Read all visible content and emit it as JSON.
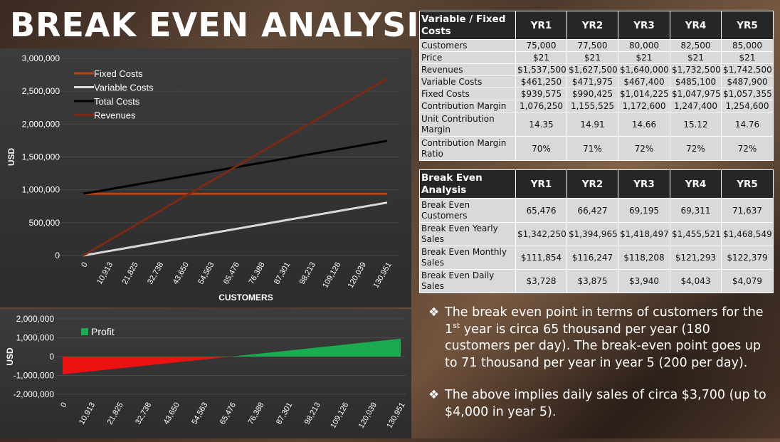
{
  "title": "BREAK EVEN ANALYSIS",
  "chart_data": [
    {
      "type": "line",
      "ylabel": "USD",
      "xlabel": "CUSTOMERS",
      "ylim": [
        0,
        3000000
      ],
      "yticks": [
        "3,000,000",
        "2,500,000",
        "2,000,000",
        "1,500,000",
        "1,000,000",
        "500,000",
        "0"
      ],
      "yticks_values": [
        3000000,
        2500000,
        2000000,
        1500000,
        1000000,
        500000,
        0
      ],
      "x": [
        0,
        10913,
        21825,
        32738,
        43650,
        54563,
        65476,
        76388,
        87301,
        98213,
        109126,
        120039,
        130951
      ],
      "x_labels": [
        "0",
        "10,913",
        "21,825",
        "32,738",
        "43,650",
        "54,563",
        "65,476",
        "76,388",
        "87,301",
        "98,213",
        "109,126",
        "120,039",
        "130,951"
      ],
      "legend_position": "top-left",
      "series": [
        {
          "name": "Fixed Costs",
          "color": "#c0410c",
          "values": [
            939575,
            939575,
            939575,
            939575,
            939575,
            939575,
            939575,
            939575,
            939575,
            939575,
            939575,
            939575,
            939575
          ]
        },
        {
          "name": "Variable Costs",
          "color": "#d9d9d9",
          "values": [
            0,
            67100,
            134200,
            201300,
            268400,
            335500,
            402600,
            469700,
            536800,
            603900,
            671000,
            738100,
            805200
          ]
        },
        {
          "name": "Total Costs",
          "color": "#000000",
          "values": [
            939575,
            1006675,
            1073775,
            1140875,
            1207975,
            1275075,
            1342175,
            1409275,
            1476375,
            1543475,
            1610575,
            1677675,
            1744775
          ]
        },
        {
          "name": "Revenues",
          "color": "#7a2a14",
          "values": [
            0,
            224400,
            448800,
            673200,
            897600,
            1122000,
            1346400,
            1570800,
            1795200,
            2019600,
            2244000,
            2468400,
            2692800
          ]
        }
      ]
    },
    {
      "type": "area",
      "ylabel": "USD",
      "ylim": [
        -2000000,
        2000000
      ],
      "yticks": [
        "2,000,000",
        "1,000,000",
        "0",
        "-1,000,000",
        "-2,000,000"
      ],
      "yticks_values": [
        2000000,
        1000000,
        0,
        -1000000,
        -2000000
      ],
      "x": [
        0,
        10913,
        21825,
        32738,
        43650,
        54563,
        65476,
        76388,
        87301,
        98213,
        109126,
        120039,
        130951
      ],
      "x_labels": [
        "0",
        "10,913",
        "21,825",
        "32,738",
        "43,650",
        "54,563",
        "65,476",
        "76,388",
        "87,301",
        "98,213",
        "109,126",
        "120,039",
        "130,951"
      ],
      "legend_position": "top-left",
      "series": [
        {
          "name": "Profit",
          "color": "#1aaa50",
          "negative_color": "#ee1111",
          "values": [
            -939575,
            -782275,
            -624975,
            -467675,
            -310375,
            -153075,
            4225,
            161525,
            318825,
            476125,
            633425,
            790725,
            948025
          ]
        }
      ]
    }
  ],
  "table1": {
    "header": [
      "Variable / Fixed Costs",
      "YR1",
      "YR2",
      "YR3",
      "YR4",
      "YR5"
    ],
    "rows": [
      [
        "Customers",
        "75,000",
        "77,500",
        "80,000",
        "82,500",
        "85,000"
      ],
      [
        "Price",
        "$21",
        "$21",
        "$21",
        "$21",
        "$21"
      ],
      [
        "Revenues",
        "$1,537,500",
        "$1,627,500",
        "$1,640,000",
        "$1,732,500",
        "$1,742,500"
      ],
      [
        "Variable Costs",
        "$461,250",
        "$471,975",
        "$467,400",
        "$485,100",
        "$487,900"
      ],
      [
        "Fixed Costs",
        "$939,575",
        "$990,425",
        "$1,014,225",
        "$1,047,975",
        "$1,057,355"
      ],
      [
        "Contribution Margin",
        "1,076,250",
        "1,155,525",
        "1,172,600",
        "1,247,400",
        "1,254,600"
      ],
      [
        "Unit Contribution Margin",
        "14.35",
        "14.91",
        "14.66",
        "15.12",
        "14.76"
      ],
      [
        "Contribution Margin Ratio",
        "70%",
        "71%",
        "72%",
        "72%",
        "72%"
      ]
    ]
  },
  "table2": {
    "header": [
      "Break Even Analysis",
      "YR1",
      "YR2",
      "YR3",
      "YR4",
      "YR5"
    ],
    "rows": [
      [
        "Break Even Customers",
        "65,476",
        "66,427",
        "69,195",
        "69,311",
        "71,637"
      ],
      [
        "Break Even Yearly Sales",
        "$1,342,250",
        "$1,394,965",
        "$1,418,497",
        "$1,455,521",
        "$1,468,549"
      ],
      [
        "Break Even Monthly Sales",
        "$111,854",
        "$116,247",
        "$118,208",
        "$121,293",
        "$122,379"
      ],
      [
        "Break Even Daily Sales",
        "$3,728",
        "$3,875",
        "$3,940",
        "$4,043",
        "$4,079"
      ]
    ]
  },
  "bullets": {
    "icon": "diamond-bullet-icon",
    "b1_pre": "The break even point in terms of customers for the 1",
    "b1_sup": "st",
    "b1_post": " year is circa 65 thousand per year (180 customers per day). The break-even point goes up to 71 thousand per year in year 5 (200 per day).",
    "b2": "The above implies daily sales of circa $3,700 (up to $4,000 in year 5)."
  }
}
